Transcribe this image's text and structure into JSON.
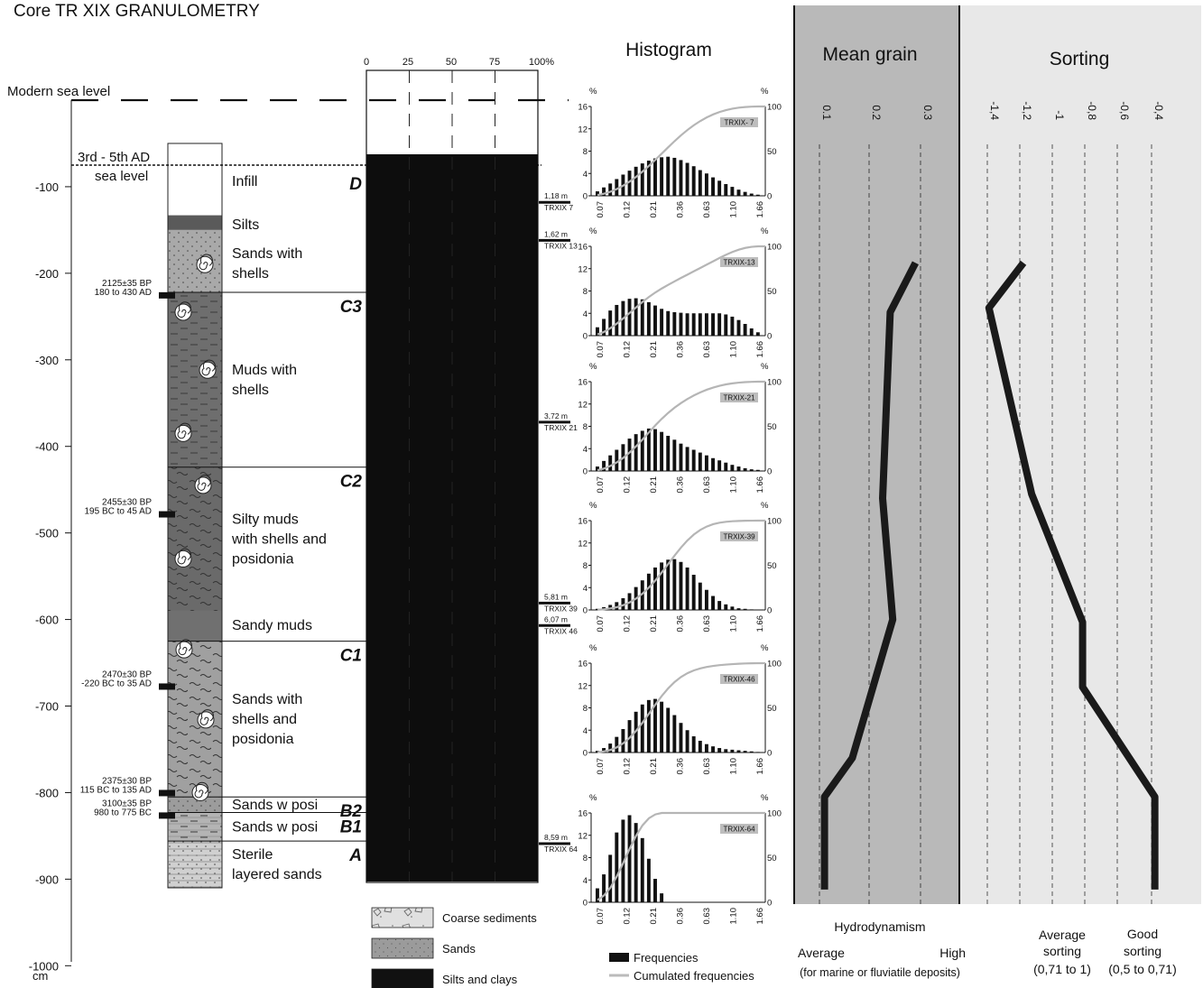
{
  "title": "Core TR XIX GRANULOMETRY",
  "modern_sea_level": "Modern sea level",
  "ancient_sea_level": {
    "line1": "3rd - 5th AD",
    "line2": "sea level"
  },
  "depth_axis": {
    "unit": "cm",
    "ticks": [
      {
        "label": "-100",
        "depth": -100
      },
      {
        "label": "-200",
        "depth": -200
      },
      {
        "label": "-300",
        "depth": -300
      },
      {
        "label": "-400",
        "depth": -400
      },
      {
        "label": "-500",
        "depth": -500
      },
      {
        "label": "-600",
        "depth": -600
      },
      {
        "label": "-700",
        "depth": -700
      },
      {
        "label": "-800",
        "depth": -800
      },
      {
        "label": "-900",
        "depth": -900
      },
      {
        "label": "-1000",
        "depth": -1000
      }
    ]
  },
  "lithology": [
    {
      "top": -50,
      "bottom": -133,
      "fill": "#ffffff",
      "pattern": "none",
      "label": [
        "Infill"
      ]
    },
    {
      "top": -133,
      "bottom": -150,
      "fill": "#5a5a5a",
      "pattern": "none",
      "label": [
        "Silts"
      ]
    },
    {
      "top": -150,
      "bottom": -222,
      "fill": "#a9a9a9",
      "pattern": "dots",
      "label": [
        "Sands with",
        "shells"
      ]
    },
    {
      "top": -222,
      "bottom": -424,
      "fill": "#6e6e6e",
      "pattern": "dash",
      "label": [
        "Muds with",
        "shells"
      ]
    },
    {
      "top": -424,
      "bottom": -590,
      "fill": "#6a6a6a",
      "pattern": "wave",
      "label": [
        "Silty muds",
        "with shells and",
        "posidonia"
      ]
    },
    {
      "top": -590,
      "bottom": -625,
      "fill": "#707070",
      "pattern": "none",
      "label": [
        "Sandy muds"
      ]
    },
    {
      "top": -625,
      "bottom": -805,
      "fill": "#a0a0a0",
      "pattern": "wave",
      "label": [
        "Sands with",
        "shells and",
        "posidonia"
      ]
    },
    {
      "top": -805,
      "bottom": -823,
      "fill": "#9c9c9c",
      "pattern": "dots",
      "label": [
        "Sands w posi"
      ]
    },
    {
      "top": -823,
      "bottom": -856,
      "fill": "#b4b4b4",
      "pattern": "dash",
      "label": [
        "Sands w posi"
      ]
    },
    {
      "top": -856,
      "bottom": -910,
      "fill": "#d0d0d0",
      "pattern": "dots",
      "label": [
        "Sterile",
        "layered sands"
      ]
    }
  ],
  "dates": [
    {
      "depth": -225,
      "line1": "2125±35 BP",
      "line2": "180 to 430 AD"
    },
    {
      "depth": -478,
      "line1": "2455±30 BP",
      "line2": "195 BC to 45 AD"
    },
    {
      "depth": -677,
      "line1": "2470±30 BP",
      "line2": "-220 BC to 35 AD"
    },
    {
      "depth": -800,
      "line1": "2375±30 BP",
      "line2": "115 BC to 135 AD"
    },
    {
      "depth": -826,
      "line1": "3100±35 BP",
      "line2": "980 to 775 BC"
    }
  ],
  "units": [
    {
      "label": "D",
      "depth": -100
    },
    {
      "label": "C3",
      "depth": -222
    },
    {
      "label": "C2",
      "depth": -424
    },
    {
      "label": "C1",
      "depth": -625
    },
    {
      "label": "B2",
      "depth": -805
    },
    {
      "label": "B1",
      "depth": -823
    },
    {
      "label": "A",
      "depth": -856
    }
  ],
  "percent_axis": [
    "0",
    "25",
    "50",
    "75",
    "100%"
  ],
  "legend_sediments": [
    {
      "label": "Coarse sediments",
      "fill": "#e0e0e0"
    },
    {
      "label": "Sands",
      "fill": "#9b9b9b"
    },
    {
      "label": "Silts and clays",
      "fill": "#111111"
    }
  ],
  "histogram": {
    "title": "Histogram",
    "x_ticks": [
      "0.07",
      "0.12",
      "0.21",
      "0.36",
      "0.63",
      "1.10",
      "1.66"
    ],
    "y_left": [
      "0",
      "4",
      "8",
      "12",
      "16"
    ],
    "y_right": [
      "0",
      "50",
      "100"
    ],
    "unit": "%",
    "legend": {
      "freq": "Frequencies",
      "cum": "Cumulated frequencies"
    },
    "samples": [
      {
        "tag": "TRXIX- 7",
        "depth_label": "1,18 m",
        "code": "TRXIX 7",
        "depth": -118,
        "freq": [
          0.8,
          1.5,
          2.2,
          3,
          3.8,
          4.5,
          5.2,
          5.8,
          6.3,
          6.7,
          6.9,
          7,
          6.8,
          6.4,
          5.9,
          5.3,
          4.6,
          4,
          3.3,
          2.7,
          2.1,
          1.6,
          1.1,
          0.7,
          0.4,
          0.2
        ]
      },
      {
        "tag": "TRXIX-13",
        "depth_label": "1,62 m",
        "code": "TRXIX 13",
        "depth": -162,
        "freq": [
          1.5,
          3,
          4.5,
          5.5,
          6.2,
          6.6,
          6.7,
          6.5,
          6,
          5.4,
          4.8,
          4.4,
          4.2,
          4.1,
          4,
          4,
          4,
          4,
          4,
          4,
          3.8,
          3.4,
          2.8,
          2.1,
          1.3,
          0.6
        ]
      },
      {
        "tag": "TRXIX-21",
        "depth_label": "3,72 m",
        "code": "TRXIX 21",
        "depth": -372,
        "freq": [
          0.8,
          1.8,
          2.8,
          3.8,
          4.8,
          5.8,
          6.6,
          7.2,
          7.6,
          7.5,
          7,
          6.3,
          5.6,
          4.9,
          4.3,
          3.8,
          3.3,
          2.8,
          2.3,
          1.9,
          1.5,
          1.1,
          0.8,
          0.5,
          0.3,
          0.2
        ]
      },
      {
        "tag": "TRXIX-39",
        "depth_label": "5,81 m",
        "code": "TRXIX 39",
        "depth": -581,
        "freq": [
          0.2,
          0.5,
          0.9,
          1.4,
          2.1,
          3,
          4.1,
          5.3,
          6.5,
          7.6,
          8.5,
          9,
          9.1,
          8.6,
          7.6,
          6.3,
          4.9,
          3.6,
          2.5,
          1.6,
          1,
          0.6,
          0.3,
          0.2,
          0.1,
          0.05
        ]
      },
      {
        "tag": "TRXIX-46",
        "depth_label": "6,07 m",
        "code": "TRXIX 46",
        "depth": -607,
        "freq": [
          0.3,
          0.8,
          1.6,
          2.8,
          4.2,
          5.8,
          7.3,
          8.6,
          9.4,
          9.6,
          9.1,
          8,
          6.7,
          5.3,
          4,
          2.9,
          2.1,
          1.5,
          1.1,
          0.8,
          0.6,
          0.5,
          0.4,
          0.3,
          0.2,
          0.1
        ]
      },
      {
        "tag": "TRXIX-64",
        "depth_label": "8,59 m",
        "code": "TRXIX 64",
        "depth": -859,
        "freq": [
          2.5,
          5,
          8.5,
          12.5,
          14.8,
          15.6,
          14.2,
          11.5,
          7.8,
          4.2,
          1.6,
          0,
          0,
          0,
          0,
          0,
          0,
          0,
          0,
          0,
          0,
          0,
          0,
          0,
          0,
          0
        ]
      }
    ]
  },
  "mean_grain": {
    "title": "Mean grain",
    "ticks": [
      "0.1",
      "0.2",
      "0.3"
    ],
    "tick_values": [
      0.1,
      0.2,
      0.3
    ],
    "range": [
      0.05,
      0.35
    ],
    "points": [
      [
        -188,
        0.29
      ],
      [
        -245,
        0.24
      ],
      [
        -460,
        0.225
      ],
      [
        -600,
        0.245
      ],
      [
        -760,
        0.165
      ],
      [
        -805,
        0.11
      ],
      [
        -912,
        0.11
      ]
    ],
    "bottom_title": "Hydrodynamism",
    "bottom_left": "Average",
    "bottom_right": "High",
    "bottom_note": "(for marine or fluviatile deposits)"
  },
  "sorting": {
    "title": "Sorting",
    "ticks": [
      "-1,4",
      "-1,2",
      "-1",
      "-0,8",
      "-0,6",
      "-0,4"
    ],
    "tick_values": [
      -1.4,
      -1.2,
      -1.0,
      -0.8,
      -0.6,
      -0.4
    ],
    "range": [
      -1.5,
      -0.2
    ],
    "points": [
      [
        -188,
        -1.18
      ],
      [
        -240,
        -1.39
      ],
      [
        -455,
        -1.13
      ],
      [
        -603,
        -0.82
      ],
      [
        -678,
        -0.82
      ],
      [
        -805,
        -0.38
      ],
      [
        -912,
        -0.38
      ]
    ],
    "bottom_avg": [
      "Average",
      "sorting",
      "(0,71 to 1)"
    ],
    "bottom_good": [
      "Good",
      "sorting",
      "(0,5 to 0,71)"
    ]
  }
}
